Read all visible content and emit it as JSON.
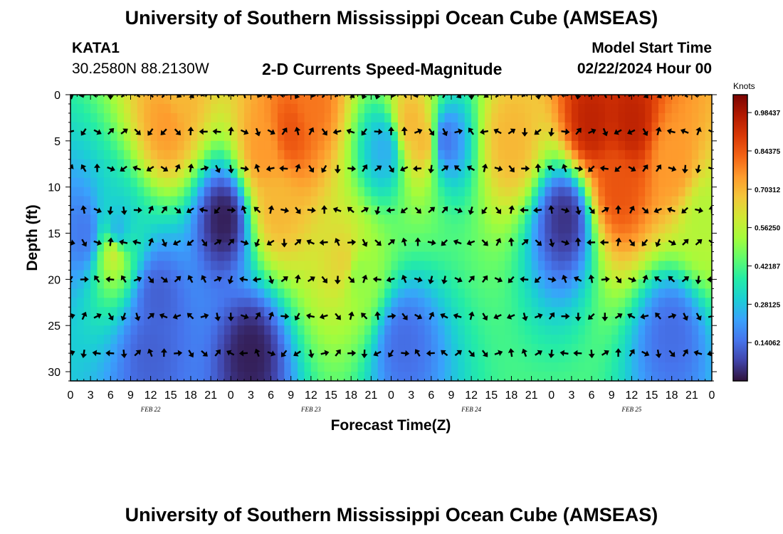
{
  "header": {
    "title_top": "University of Southern Mississippi Ocean Cube (AMSEAS)",
    "title_bottom": "University of Southern Mississippi Ocean Cube (AMSEAS)",
    "station_id": "KATA1",
    "station_coords": "30.2580N  88.2130W",
    "plot_title": "2-D Currents Speed-Magnitude",
    "model_start_label": "Model Start Time",
    "model_start_time": "02/22/2024 Hour 00"
  },
  "chart_data": {
    "type": "heatmap",
    "title": "2-D Currents Speed-Magnitude",
    "xlabel": "Forecast Time(Z)",
    "ylabel": "Depth (ft)",
    "x_tick_labels": [
      "0",
      "3",
      "6",
      "9",
      "12",
      "15",
      "18",
      "21",
      "0",
      "3",
      "6",
      "9",
      "12",
      "15",
      "18",
      "21",
      "0",
      "3",
      "6",
      "9",
      "12",
      "15",
      "18",
      "21",
      "0",
      "3",
      "6",
      "9",
      "12",
      "15",
      "18",
      "21",
      "0"
    ],
    "x_range_hours": [
      0,
      96
    ],
    "date_labels": [
      {
        "label": "FEB 22",
        "hour": 12
      },
      {
        "label": "FEB 23",
        "hour": 36
      },
      {
        "label": "FEB 24",
        "hour": 60
      },
      {
        "label": "FEB 25",
        "hour": 84
      }
    ],
    "y_ticks": [
      0,
      5,
      10,
      15,
      20,
      25,
      30
    ],
    "y_range_ft": [
      0,
      31
    ],
    "colorbar": {
      "unit_label": "Knots",
      "tick_labels": [
        "0.98437",
        "0.84375",
        "0.70312",
        "0.56250",
        "0.42187",
        "0.28125",
        "0.14062"
      ],
      "tick_values": [
        0.98437,
        0.84375,
        0.70312,
        0.5625,
        0.42187,
        0.28125,
        0.14062
      ],
      "range": [
        0,
        1.05
      ],
      "colors": [
        "#30123b",
        "#4145ab",
        "#4675ed",
        "#39a2fc",
        "#1bcfd4",
        "#24eca6",
        "#61fc6c",
        "#a4fc3b",
        "#d1e834",
        "#f3c63a",
        "#fe9b2d",
        "#f36315",
        "#d93806",
        "#b11901",
        "#7a0402"
      ]
    },
    "speed_features": [
      {
        "hour": 2,
        "depth": 15,
        "speed": 0.16
      },
      {
        "hour": 7,
        "depth": 15,
        "speed": 0.24
      },
      {
        "hour": 6.5,
        "depth": 17,
        "speed": 0.6
      },
      {
        "hour": 14.5,
        "depth": 3,
        "speed": 0.75
      },
      {
        "hour": 16,
        "depth": 0,
        "speed": 0.7
      },
      {
        "hour": 13,
        "depth": 22,
        "speed": 0.12
      },
      {
        "hour": 23,
        "depth": 13.5,
        "speed": 0.02
      },
      {
        "hour": 27,
        "depth": 28,
        "speed": 0.02
      },
      {
        "hour": 29,
        "depth": 6,
        "speed": 0.75
      },
      {
        "hour": 33,
        "depth": 4,
        "speed": 0.85
      },
      {
        "hour": 31,
        "depth": 12,
        "speed": 0.7
      },
      {
        "hour": 36,
        "depth": 1,
        "speed": 0.8
      },
      {
        "hour": 41,
        "depth": 18,
        "speed": 0.65
      },
      {
        "hour": 43,
        "depth": 19.5,
        "speed": 0.5
      },
      {
        "hour": 47,
        "depth": 6,
        "speed": 0.25
      },
      {
        "hour": 51,
        "depth": 3,
        "speed": 0.7
      },
      {
        "hour": 53,
        "depth": 5,
        "speed": 0.7
      },
      {
        "hour": 56,
        "depth": 5,
        "speed": 0.15
      },
      {
        "hour": 66,
        "depth": 5,
        "speed": 0.7
      },
      {
        "hour": 74,
        "depth": 13.5,
        "speed": 0.05
      },
      {
        "hour": 78,
        "depth": 3,
        "speed": 0.95
      },
      {
        "hour": 82,
        "depth": 10,
        "speed": 0.85
      },
      {
        "hour": 84,
        "depth": 3,
        "speed": 0.95
      },
      {
        "hour": 90,
        "depth": 7,
        "speed": 0.75
      },
      {
        "hour": 95,
        "depth": 14,
        "speed": 0.55
      },
      {
        "hour": 90,
        "depth": 26,
        "speed": 0.14
      },
      {
        "hour": 50,
        "depth": 27,
        "speed": 0.14
      },
      {
        "hour": 12,
        "depth": 28,
        "speed": 0.12
      }
    ],
    "vector_depths_ft": [
      0,
      4,
      8,
      12.5,
      16,
      20,
      24,
      28
    ],
    "vector_hours": [
      0,
      2,
      4,
      6,
      8,
      10,
      12,
      14,
      16,
      18,
      20,
      22,
      24,
      26,
      28,
      30,
      32,
      34,
      36,
      38,
      40,
      42,
      44,
      46,
      48,
      50,
      52,
      54,
      56,
      58,
      60,
      62,
      64,
      66,
      68,
      70,
      72,
      74,
      76,
      78,
      80,
      82,
      84,
      86,
      88,
      90,
      92,
      94,
      96
    ]
  }
}
